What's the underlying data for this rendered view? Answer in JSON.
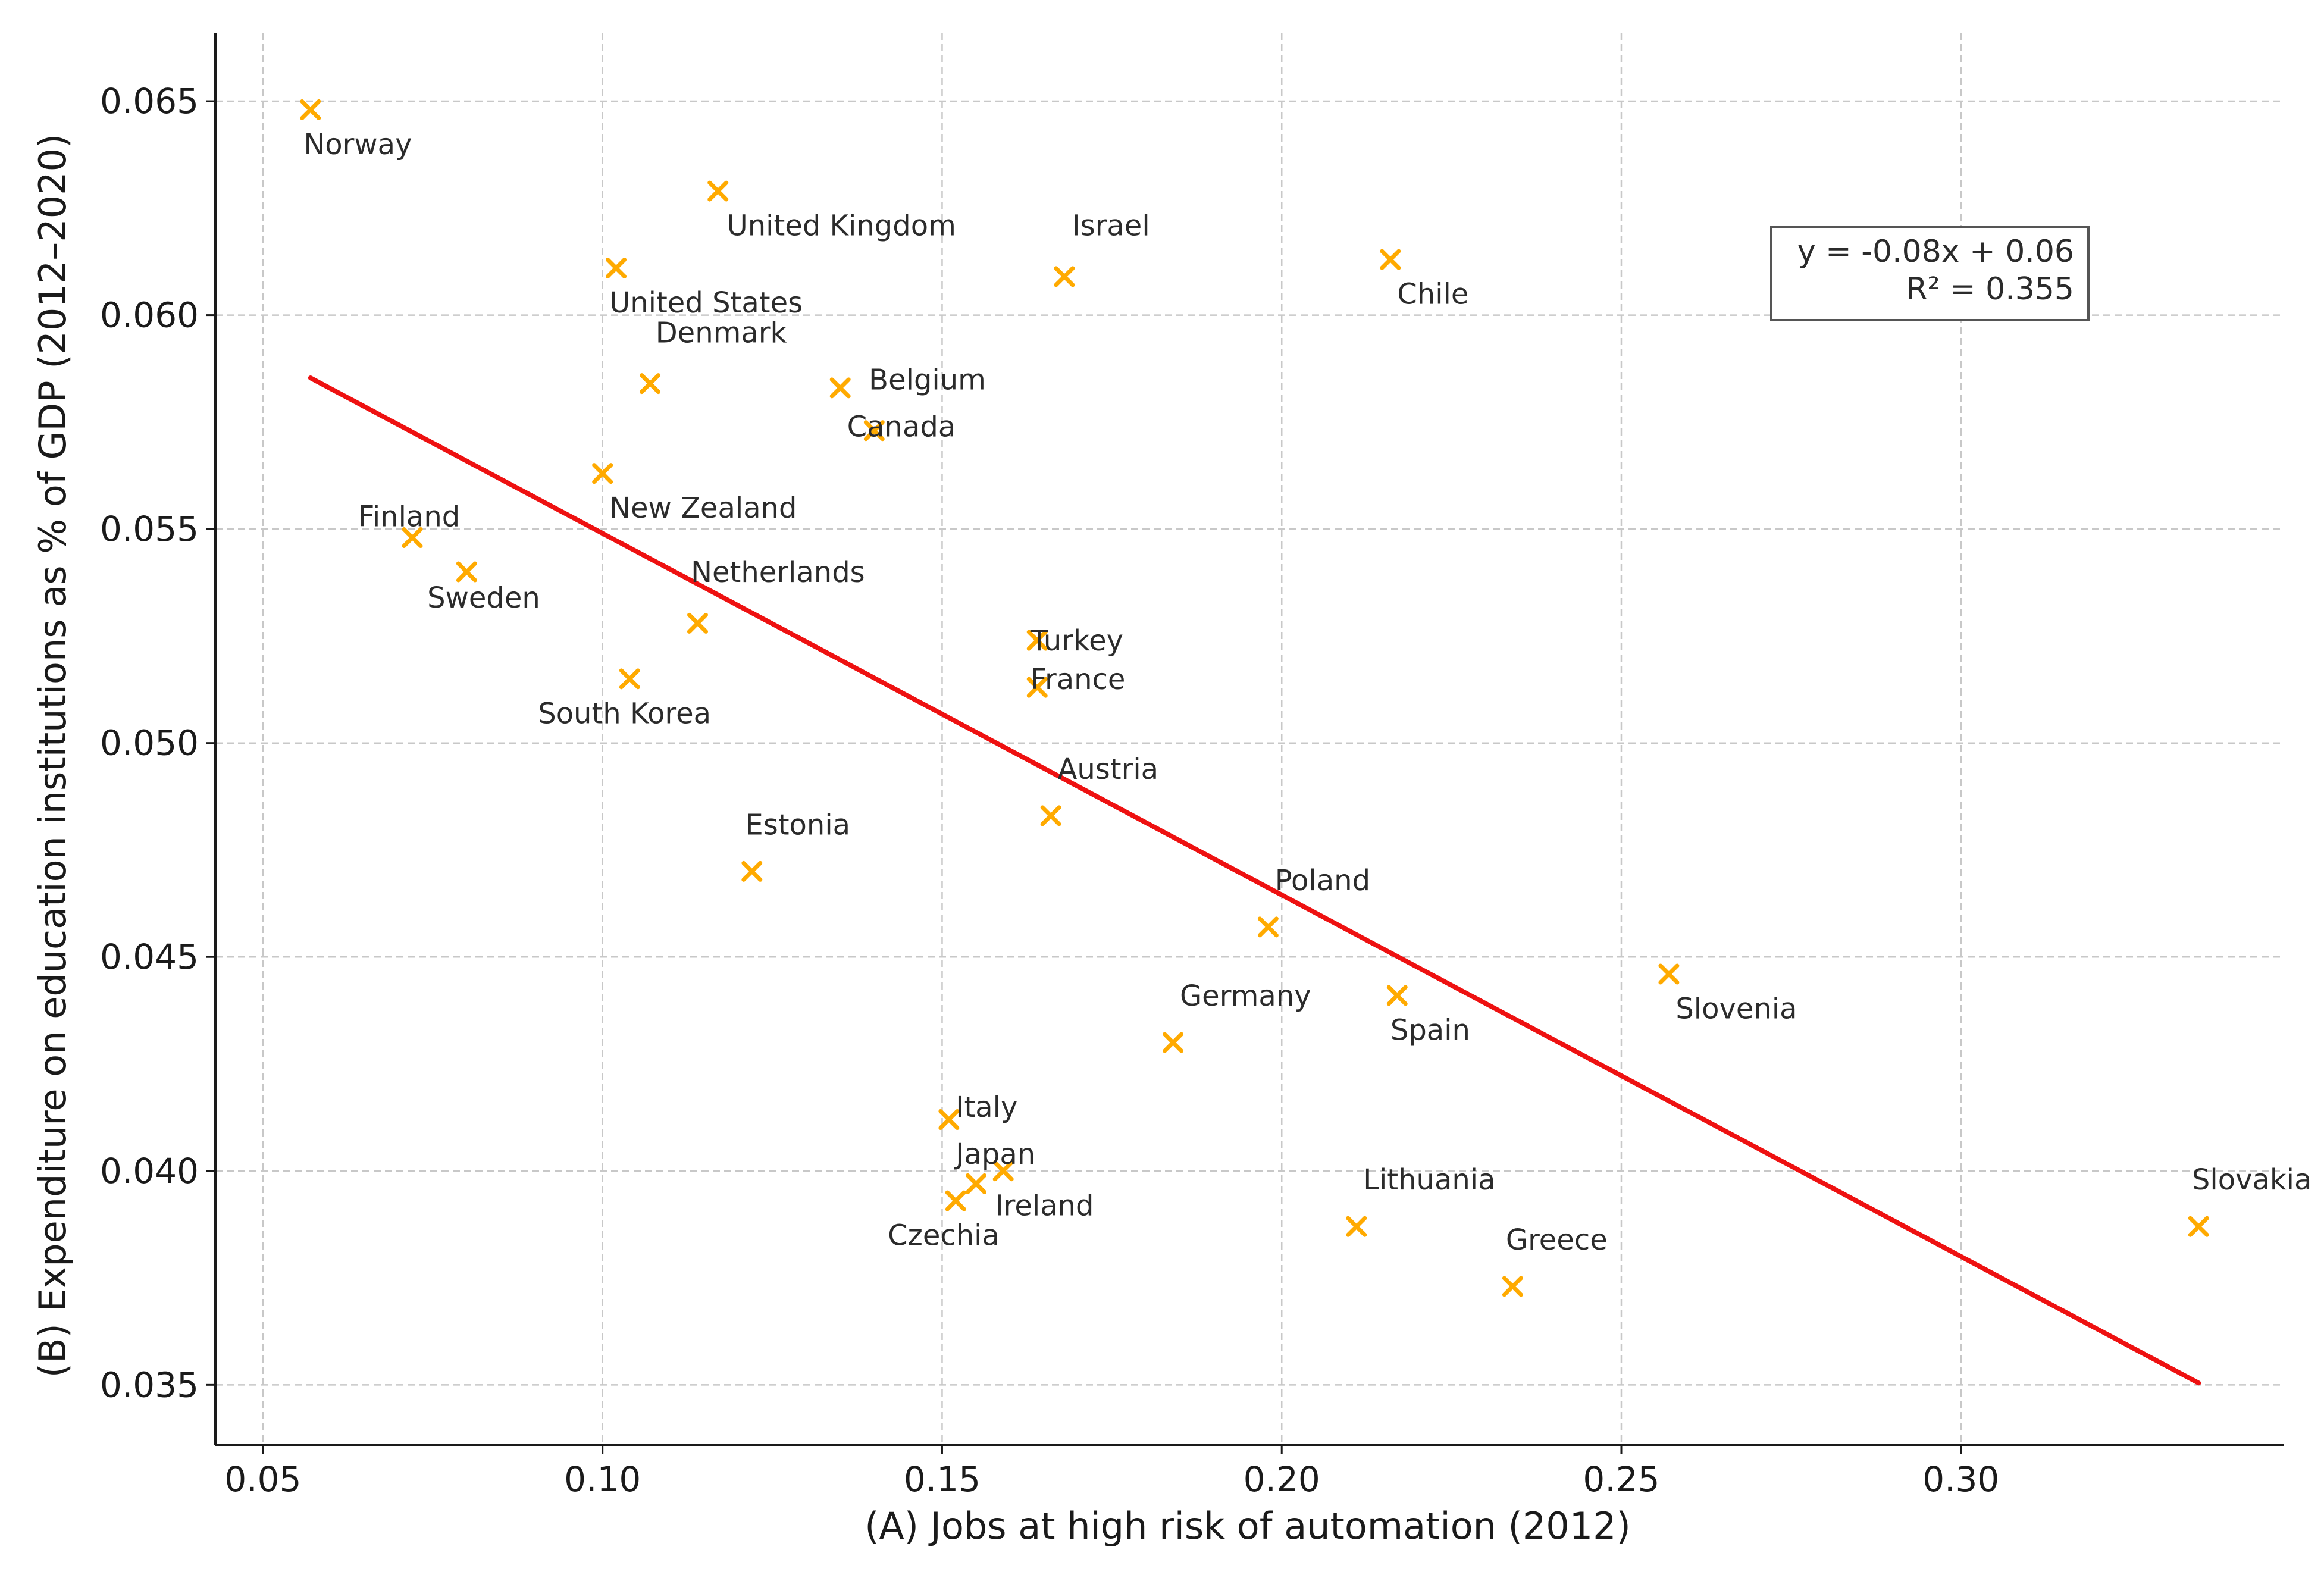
{
  "chart_data": {
    "type": "scatter",
    "title": "",
    "xlabel": "(A) Jobs at high risk of automation (2012)",
    "ylabel": "(B) Expenditure on education institutions as % of GDP (2012–2020)",
    "xlim": [
      0.043,
      0.3475
    ],
    "ylim": [
      0.0336,
      0.0666
    ],
    "xticks": [
      0.05,
      0.1,
      0.15,
      0.2,
      0.25,
      0.3
    ],
    "xtick_labels": [
      "0.05",
      "0.10",
      "0.15",
      "0.20",
      "0.25",
      "0.30"
    ],
    "yticks": [
      0.035,
      0.04,
      0.045,
      0.05,
      0.055,
      0.06,
      0.065
    ],
    "ytick_labels": [
      "0.035",
      "0.040",
      "0.045",
      "0.050",
      "0.055",
      "0.060",
      "0.065"
    ],
    "grid": true,
    "marker_color": "#ffaa00",
    "line_color": "#ee1111",
    "regression": {
      "slope": -0.0845,
      "intercept": 0.06335,
      "x_range": [
        0.057,
        0.335
      ],
      "equation": "y = -0.08x + 0.06",
      "r2": "R² = 0.355"
    },
    "points": [
      {
        "label": "Norway",
        "x": 0.057,
        "y": 0.0648,
        "ldx": -0.001,
        "ldy": -0.0008,
        "anchor": "start"
      },
      {
        "label": "United Kingdom",
        "x": 0.117,
        "y": 0.0629,
        "ldx": 0.0013,
        "ldy": -0.0008,
        "anchor": "start"
      },
      {
        "label": "Israel",
        "x": 0.168,
        "y": 0.0609,
        "ldx": 0.0011,
        "ldy": 0.0012,
        "anchor": "start"
      },
      {
        "label": "Chile",
        "x": 0.216,
        "y": 0.0613,
        "ldx": 0.001,
        "ldy": -0.0008,
        "anchor": "start"
      },
      {
        "label": "United States",
        "x": 0.102,
        "y": 0.0611,
        "ldx": -0.001,
        "ldy": -0.0008,
        "anchor": "start"
      },
      {
        "label": "Denmark",
        "x": 0.107,
        "y": 0.0584,
        "ldx": 0.0008,
        "ldy": 0.0012,
        "anchor": "start"
      },
      {
        "label": "Belgium",
        "x": 0.135,
        "y": 0.0583,
        "ldx": 0.0042,
        "ldy": 0.0002,
        "anchor": "start"
      },
      {
        "label": "Canada",
        "x": 0.14,
        "y": 0.0573,
        "ldx": -0.004,
        "ldy": 0.0001,
        "anchor": "start"
      },
      {
        "label": "New Zealand",
        "x": 0.1,
        "y": 0.0563,
        "ldx": 0.001,
        "ldy": -0.0008,
        "anchor": "start"
      },
      {
        "label": "Finland",
        "x": 0.072,
        "y": 0.0548,
        "ldx": -0.008,
        "ldy": 0.0005,
        "anchor": "start"
      },
      {
        "label": "Sweden",
        "x": 0.08,
        "y": 0.054,
        "ldx": -0.0058,
        "ldy": -0.0006,
        "anchor": "start"
      },
      {
        "label": "Netherlands",
        "x": 0.114,
        "y": 0.0528,
        "ldx": -0.001,
        "ldy": 0.0012,
        "anchor": "start"
      },
      {
        "label": "South Korea",
        "x": 0.104,
        "y": 0.0515,
        "ldx": -0.0135,
        "ldy": -0.0008,
        "anchor": "start"
      },
      {
        "label": "Turkey",
        "x": 0.164,
        "y": 0.0524,
        "ldx": -0.001,
        "ldy": 0.0,
        "anchor": "start"
      },
      {
        "label": "France",
        "x": 0.164,
        "y": 0.0513,
        "ldx": -0.001,
        "ldy": 0.0002,
        "anchor": "start"
      },
      {
        "label": "Austria",
        "x": 0.166,
        "y": 0.0483,
        "ldx": 0.001,
        "ldy": 0.0011,
        "anchor": "start"
      },
      {
        "label": "Estonia",
        "x": 0.122,
        "y": 0.047,
        "ldx": -0.001,
        "ldy": 0.0011,
        "anchor": "start"
      },
      {
        "label": "Poland",
        "x": 0.198,
        "y": 0.0457,
        "ldx": 0.001,
        "ldy": 0.0011,
        "anchor": "start"
      },
      {
        "label": "Germany",
        "x": 0.184,
        "y": 0.043,
        "ldx": 0.001,
        "ldy": 0.0011,
        "anchor": "start"
      },
      {
        "label": "Spain",
        "x": 0.217,
        "y": 0.0441,
        "ldx": -0.001,
        "ldy": -0.0008,
        "anchor": "start"
      },
      {
        "label": "Slovenia",
        "x": 0.257,
        "y": 0.0446,
        "ldx": 0.001,
        "ldy": -0.0008,
        "anchor": "start"
      },
      {
        "label": "Italy",
        "x": 0.151,
        "y": 0.0412,
        "ldx": 0.001,
        "ldy": 0.0003,
        "anchor": "start"
      },
      {
        "label": "Japan",
        "x": 0.159,
        "y": 0.04,
        "ldx": -0.007,
        "ldy": 0.0004,
        "anchor": "start"
      },
      {
        "label": "Ireland",
        "x": 0.155,
        "y": 0.0397,
        "ldx": 0.0028,
        "ldy": -0.0005,
        "anchor": "start"
      },
      {
        "label": "Czechia",
        "x": 0.152,
        "y": 0.0393,
        "ldx": -0.01,
        "ldy": -0.0008,
        "anchor": "start"
      },
      {
        "label": "Lithuania",
        "x": 0.211,
        "y": 0.0387,
        "ldx": 0.001,
        "ldy": 0.0011,
        "anchor": "start"
      },
      {
        "label": "Greece",
        "x": 0.234,
        "y": 0.0373,
        "ldx": -0.001,
        "ldy": 0.0011,
        "anchor": "start"
      },
      {
        "label": "Slovakia",
        "x": 0.335,
        "y": 0.0387,
        "ldx": -0.001,
        "ldy": 0.0011,
        "anchor": "start"
      }
    ]
  }
}
